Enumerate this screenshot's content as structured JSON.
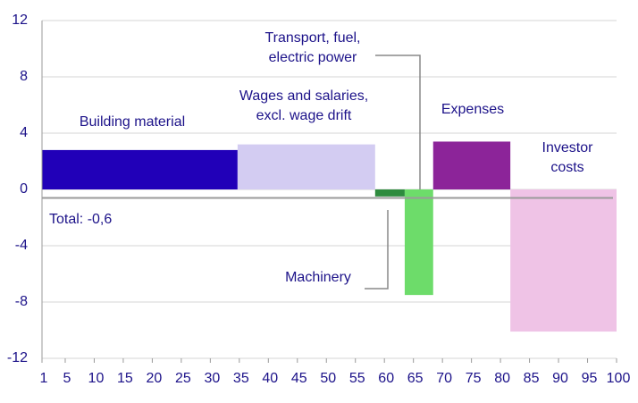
{
  "chart_data": {
    "type": "bar",
    "categories": [
      [
        "Building material"
      ],
      [
        "Wages and salaries,",
        "excl. wage drift"
      ],
      [
        "Machinery"
      ],
      [
        "Transport, fuel,",
        "electric power"
      ],
      [
        "Expenses"
      ],
      [
        "Investor",
        "costs"
      ]
    ],
    "bins": [
      1,
      34.7,
      58.4,
      63.5,
      68.4,
      81.7,
      100
    ],
    "values": [
      2.8,
      3.2,
      -0.5,
      -7.5,
      3.4,
      -10.1
    ],
    "colors": [
      "#2100b8",
      "#d3ccf2",
      "#2e8b3e",
      "#6ddc6a",
      "#8c2499",
      "#efc3e6"
    ],
    "total": {
      "value": -0.6,
      "label": "Total: -0,6"
    },
    "xlim": [
      1,
      100
    ],
    "xticks": [
      1,
      5,
      10,
      15,
      20,
      25,
      30,
      35,
      40,
      45,
      50,
      55,
      60,
      65,
      70,
      75,
      80,
      85,
      90,
      95,
      100
    ],
    "ylim": [
      -12,
      12
    ],
    "yticks": [
      12,
      8,
      4,
      0,
      -4,
      -8,
      -12
    ],
    "grid": true
  }
}
